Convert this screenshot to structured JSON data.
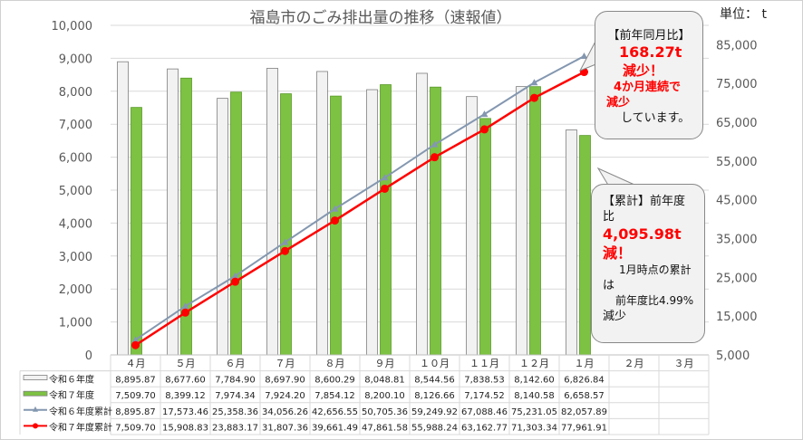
{
  "chart_data": {
    "type": "bar+line",
    "title": "福島市のごみ排出量の推移（速報値）",
    "unit_label": "単位： t",
    "categories": [
      "4月",
      "5月",
      "6月",
      "7月",
      "8月",
      "9月",
      "10月",
      "11月",
      "12月",
      "1月",
      "2月",
      "3月"
    ],
    "category_labels": [
      "４月",
      "５月",
      "６月",
      "７月",
      "８月",
      "９月",
      "１０月",
      "１１月",
      "１２月",
      "１月",
      "２月",
      "３月"
    ],
    "left_axis": {
      "ylim": [
        0,
        10000
      ],
      "ticks": [
        "0",
        "1,000",
        "2,000",
        "3,000",
        "4,000",
        "5,000",
        "6,000",
        "7,000",
        "8,000",
        "9,000",
        "10,000"
      ]
    },
    "right_axis": {
      "ylim": [
        5000,
        90000
      ],
      "ticks": [
        "5,000",
        "15,000",
        "25,000",
        "35,000",
        "45,000",
        "55,000",
        "65,000",
        "75,000",
        "85,000"
      ]
    },
    "grid": true,
    "series": [
      {
        "name": "令和６年度",
        "type": "bar",
        "axis": "left",
        "color": "#f2f2f2",
        "values": [
          8895.87,
          8677.6,
          7784.9,
          8697.9,
          8600.29,
          8048.81,
          8544.56,
          7838.53,
          8142.6,
          6826.84,
          null,
          null
        ],
        "labels": [
          "8,895.87",
          "8,677.60",
          "7,784.90",
          "8,697.90",
          "8,600.29",
          "8,048.81",
          "8,544.56",
          "7,838.53",
          "8,142.60",
          "6,826.84",
          "",
          ""
        ]
      },
      {
        "name": "令和７年度",
        "type": "bar",
        "axis": "left",
        "color": "#7dc242",
        "values": [
          7509.7,
          8399.12,
          7974.34,
          7924.2,
          7854.12,
          8200.1,
          8126.66,
          7174.52,
          8140.58,
          6658.57,
          null,
          null
        ],
        "labels": [
          "7,509.70",
          "8,399.12",
          "7,974.34",
          "7,924.20",
          "7,854.12",
          "8,200.10",
          "8,126.66",
          "7,174.52",
          "8,140.58",
          "6,658.57",
          "",
          ""
        ]
      },
      {
        "name": "令和６年度累計",
        "type": "line",
        "axis": "right",
        "color": "#8497b0",
        "values": [
          8895.87,
          17573.46,
          25358.36,
          34056.26,
          42656.55,
          50705.36,
          59249.92,
          67088.46,
          75231.05,
          82057.89,
          null,
          null
        ],
        "labels": [
          "8,895.87",
          "17,573.46",
          "25,358.36",
          "34,056.26",
          "42,656.55",
          "50,705.36",
          "59,249.92",
          "67,088.46",
          "75,231.05",
          "82,057.89",
          "",
          ""
        ]
      },
      {
        "name": "令和７年度累計",
        "type": "line",
        "axis": "right",
        "color": "#ff0000",
        "values": [
          7509.7,
          15908.83,
          23883.17,
          31807.36,
          39661.49,
          47861.58,
          55988.24,
          63162.77,
          71303.34,
          77961.91,
          null,
          null
        ],
        "labels": [
          "7,509.70",
          "15,908.83",
          "23,883.17",
          "31,807.36",
          "39,661.49",
          "47,861.58",
          "55,988.24",
          "63,162.77",
          "71,303.34",
          "77,961.91",
          "",
          ""
        ]
      }
    ]
  },
  "callout1": {
    "title": "【前年同月比】",
    "amount": "168.27t",
    "decrease": "減少！",
    "streak": "4か月連続で",
    "streak2": "減少",
    "tail": "しています。"
  },
  "callout2": {
    "title": "【累計】前年度",
    "title2": "比",
    "amount": "4,095.98t",
    "decrease": "減！",
    "note": "1月時点の累計",
    "note2": "は",
    "pct": "前年度比4.99%",
    "tail": "減少"
  }
}
